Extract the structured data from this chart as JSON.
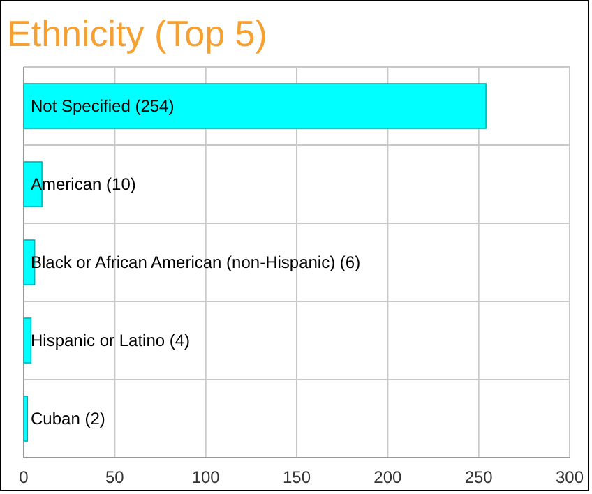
{
  "chart_data": {
    "type": "bar",
    "title": "Ethnicity (Top 5)",
    "orientation": "horizontal",
    "categories": [
      "Not Specified (254)",
      "American (10)",
      "Black or African American (non-Hispanic) (6)",
      "Hispanic or Latino (4)",
      "Cuban (2)"
    ],
    "values": [
      254,
      10,
      6,
      4,
      2
    ],
    "color": "#00ffff",
    "xlim": [
      0,
      300
    ],
    "xticks": [
      0,
      50,
      100,
      150,
      200,
      250,
      300
    ],
    "grid": true
  }
}
